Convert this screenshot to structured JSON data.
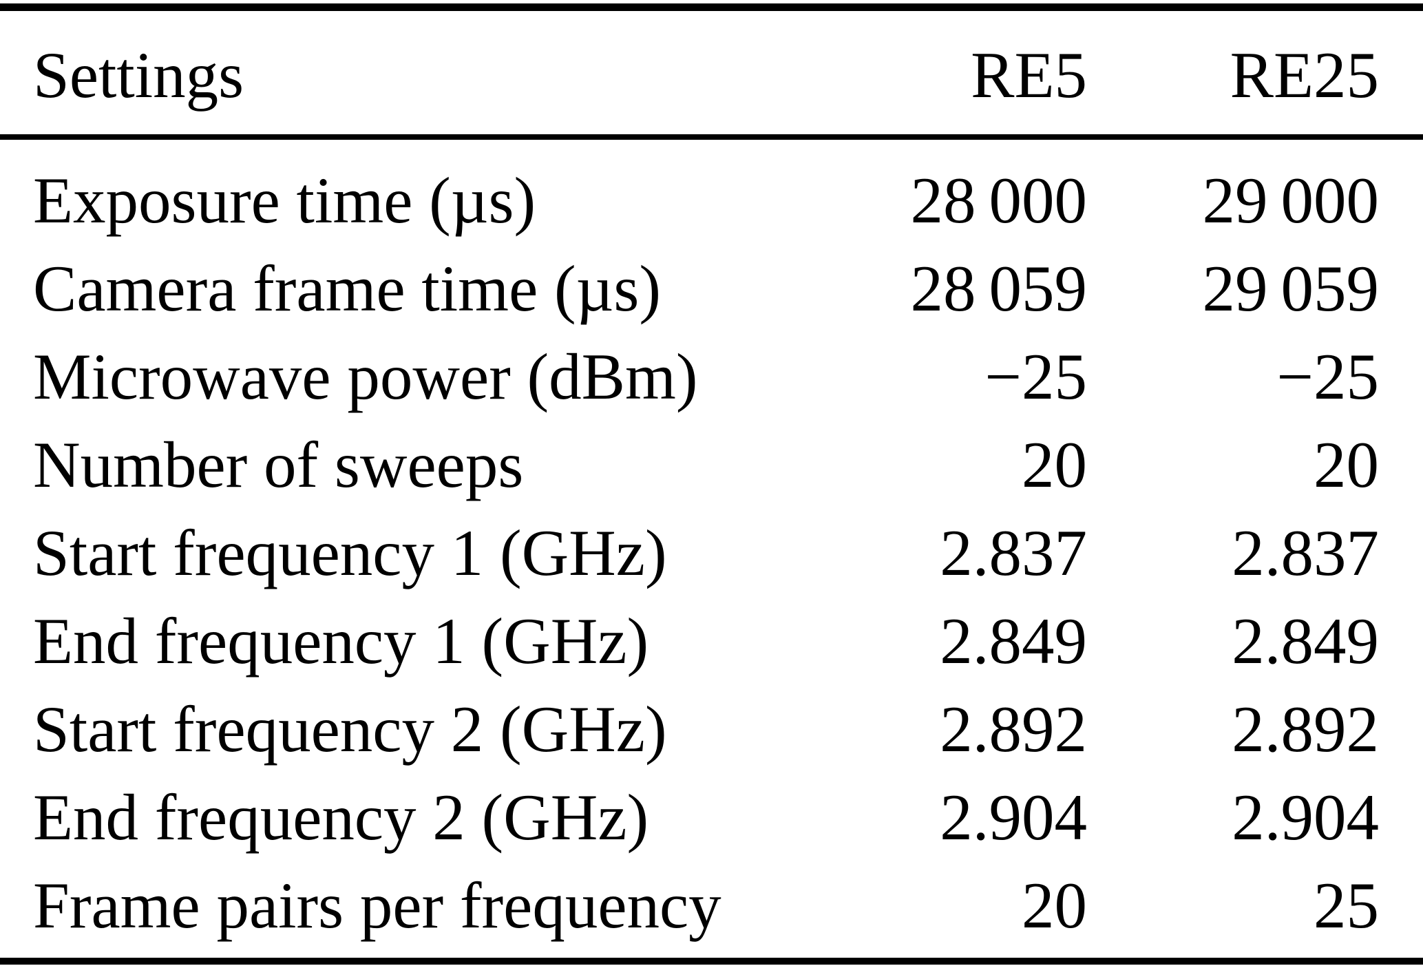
{
  "table": {
    "colors": {
      "text": "#000000",
      "background": "#ffffff",
      "rule": "#000000"
    },
    "header": {
      "settings": "Settings",
      "re5": "RE5",
      "re25": "RE25"
    },
    "rows": [
      {
        "label": "Exposure time (µs)",
        "re5": "28 000",
        "re25": "29 000"
      },
      {
        "label": "Camera frame time (µs)",
        "re5": "28 059",
        "re25": "29 059"
      },
      {
        "label": "Microwave power (dBm)",
        "re5": "−25",
        "re25": "−25"
      },
      {
        "label": "Number of sweeps",
        "re5": "20",
        "re25": "20"
      },
      {
        "label": "Start frequency 1 (GHz)",
        "re5": "2.837",
        "re25": "2.837"
      },
      {
        "label": "End frequency 1 (GHz)",
        "re5": "2.849",
        "re25": "2.849"
      },
      {
        "label": "Start frequency 2 (GHz)",
        "re5": "2.892",
        "re25": "2.892"
      },
      {
        "label": "End frequency 2 (GHz)",
        "re5": "2.904",
        "re25": "2.904"
      },
      {
        "label": "Frame pairs per frequency",
        "re5": "20",
        "re25": "25"
      }
    ]
  }
}
